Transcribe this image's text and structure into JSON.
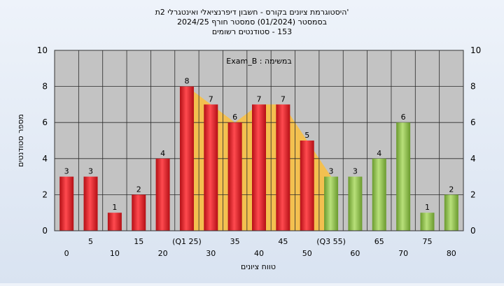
{
  "chart_data": {
    "type": "bar",
    "title_lines": [
      "'היסטוגרמת ציונים בקורס - חשבון דיפרנציאלי ואינטגרלי 2ת",
      "בסמסטר  (01/2024)  סמסטר חורף 2024/25",
      "153 - סטודנטים רשומים"
    ],
    "annotation": "במשימה : Exam_B",
    "xlabel": "טווח ציונים",
    "ylabel": "מספר סטודנטים",
    "ylim": [
      0,
      10
    ],
    "yticks": [
      0,
      2,
      4,
      6,
      8,
      10
    ],
    "grid": true,
    "categories": [
      "0",
      "5",
      "10",
      "15",
      "20",
      "(Q1 25)",
      "30",
      "35",
      "40",
      "45",
      "50",
      "(Q3 55)",
      "60",
      "65",
      "70",
      "75",
      "80"
    ],
    "values": [
      3,
      3,
      1,
      2,
      4,
      8,
      7,
      6,
      7,
      7,
      5,
      3,
      3,
      4,
      6,
      1,
      2
    ],
    "bar_groups": [
      "red",
      "red",
      "red",
      "red",
      "red",
      "red",
      "red",
      "red",
      "red",
      "red",
      "red",
      "green",
      "green",
      "green",
      "green",
      "green",
      "green"
    ],
    "highlight_band": {
      "from": "(Q1 25)",
      "to": "(Q3 55)"
    },
    "colors": {
      "red_bar": "#e8232a",
      "green_bar": "#8fc04a",
      "band": "#f5c04a",
      "plot_bg": "#c3c3c3",
      "grid": "#2a2a2a"
    }
  }
}
